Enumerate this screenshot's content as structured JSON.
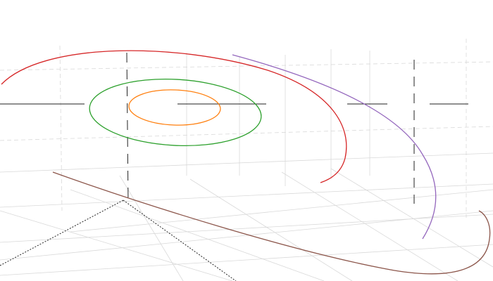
{
  "scene": {
    "background": "#ffffff",
    "grid_color": "#d9d9d9",
    "axis_color": "#222222"
  },
  "orbits": [
    {
      "name": "orange-orbit",
      "color": "#ff7f0e"
    },
    {
      "name": "green-orbit",
      "color": "#2ca02c"
    },
    {
      "name": "red-orbit",
      "color": "#d62728"
    },
    {
      "name": "purple-orbit",
      "color": "#9467bd"
    },
    {
      "name": "brown-orbit",
      "color": "#8c564b"
    }
  ]
}
